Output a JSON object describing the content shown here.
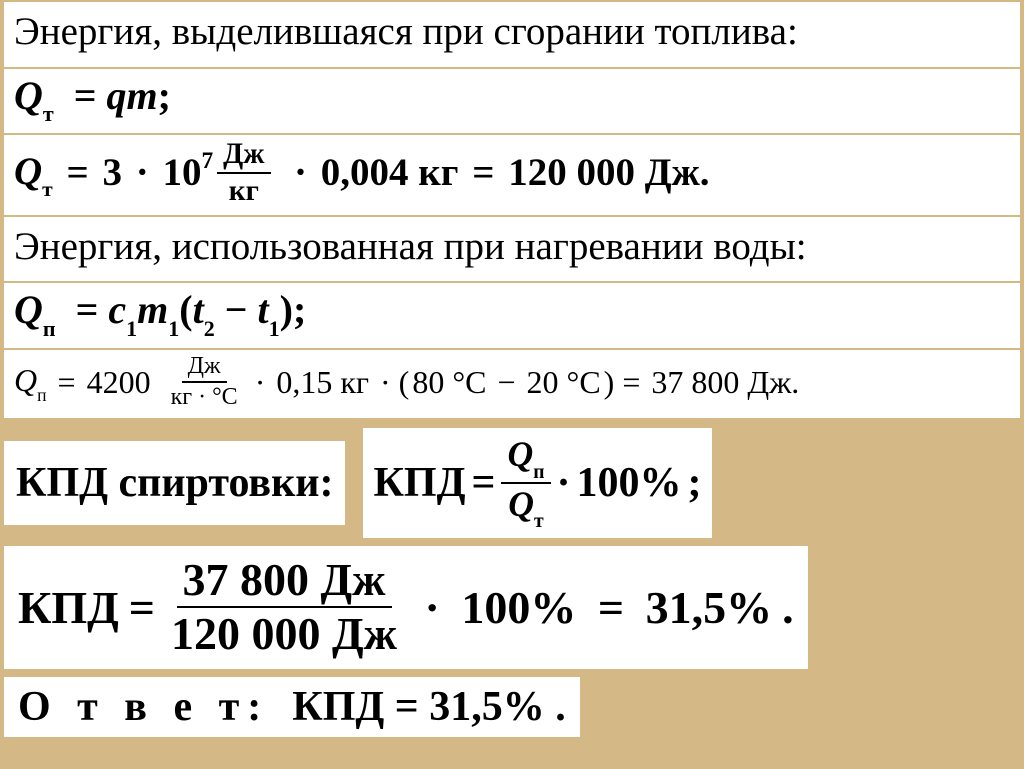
{
  "line1": "Энергия, выделившаяся при сгорании топлива:",
  "formula1": {
    "lhs_sym": "Q",
    "lhs_sub": "т",
    "rhs": "qm",
    "tail": ";"
  },
  "calc1": {
    "lhs_sym": "Q",
    "lhs_sub": "т",
    "coef": "3",
    "exp_base": "10",
    "exp_pow": "7",
    "unit_num": "Дж",
    "unit_den": "кг",
    "mass": "0,004 кг",
    "result": "120 000 Дж."
  },
  "line4": "Энергия, использованная при нагревании воды:",
  "formula2": {
    "lhs_sym": "Q",
    "lhs_sub": "п",
    "c": "c",
    "c_sub": "1",
    "m": "m",
    "m_sub": "1",
    "t2": "t",
    "t2_sub": "2",
    "t1": "t",
    "t1_sub": "1",
    "tail": ";"
  },
  "calc2": {
    "lhs_sym": "Q",
    "lhs_sub": "п",
    "c_val": "4200",
    "unit_num": "Дж",
    "unit_den": "кг · °С",
    "mass": "0,15 кг",
    "t_hi": "80 °С",
    "t_lo": "20 °С",
    "result": "37 800 Дж."
  },
  "kpd_label": "КПД спиртовки:",
  "kpd_formula": {
    "lhs": "КПД",
    "num_sym": "Q",
    "num_sub": "п",
    "den_sym": "Q",
    "den_sub": "т",
    "mult": "100%",
    "tail": ";"
  },
  "kpd_calc": {
    "lhs": "КПД",
    "num": "37 800 Дж",
    "den": "120 000 Дж",
    "mult": "100%",
    "result": "31,5%",
    "tail": "."
  },
  "answer": {
    "label": "О т в е т:",
    "text": "КПД = 31,5% ."
  },
  "colors": {
    "bg": "#d4b886",
    "box": "#ffffff",
    "text": "#000000"
  }
}
